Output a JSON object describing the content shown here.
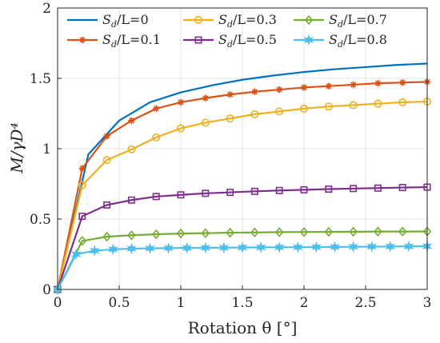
{
  "chart_data": {
    "type": "line",
    "xlabel": "Rotation θ [°]",
    "ylabel": "M/γD⁴",
    "xlim": [
      0,
      3
    ],
    "ylim": [
      0,
      2
    ],
    "xticks": [
      "0",
      "0.5",
      "1",
      "1.5",
      "2",
      "2.5",
      "3"
    ],
    "yticks": [
      "0",
      "0.5",
      "1",
      "1.5",
      "2"
    ],
    "grid": true,
    "legend": "top, 3 columns",
    "series": [
      {
        "name": "Sd/L=0",
        "sub": "d",
        "lead": "S",
        "tail": "/L=0",
        "color": "#0072BD",
        "marker": "none",
        "x": [
          0,
          0.25,
          0.5,
          0.75,
          1.0,
          1.25,
          1.5,
          1.75,
          2.0,
          2.25,
          2.5,
          2.75,
          3.0
        ],
        "y": [
          0,
          0.96,
          1.2,
          1.33,
          1.4,
          1.45,
          1.49,
          1.52,
          1.545,
          1.565,
          1.58,
          1.595,
          1.605
        ]
      },
      {
        "name": "Sd/L=0.1",
        "sub": "d",
        "lead": "S",
        "tail": "/L=0.1",
        "color": "#D95319",
        "marker": "star",
        "x": [
          0,
          0.2,
          0.4,
          0.6,
          0.8,
          1.0,
          1.2,
          1.4,
          1.6,
          1.8,
          2.0,
          2.2,
          2.4,
          2.6,
          2.8,
          3.0
        ],
        "y": [
          0,
          0.86,
          1.09,
          1.2,
          1.285,
          1.33,
          1.36,
          1.385,
          1.405,
          1.42,
          1.435,
          1.445,
          1.455,
          1.465,
          1.47,
          1.475
        ]
      },
      {
        "name": "Sd/L=0.3",
        "sub": "d",
        "lead": "S",
        "tail": "/L=0.3",
        "color": "#EDB120",
        "marker": "circle",
        "x": [
          0,
          0.2,
          0.4,
          0.6,
          0.8,
          1.0,
          1.2,
          1.4,
          1.6,
          1.8,
          2.0,
          2.2,
          2.4,
          2.6,
          2.8,
          3.0
        ],
        "y": [
          0,
          0.74,
          0.92,
          0.995,
          1.08,
          1.145,
          1.185,
          1.215,
          1.245,
          1.265,
          1.285,
          1.3,
          1.31,
          1.32,
          1.33,
          1.335
        ]
      },
      {
        "name": "Sd/L=0.5",
        "sub": "d",
        "lead": "S",
        "tail": "/L=0.5",
        "color": "#7E2F8E",
        "marker": "square",
        "x": [
          0,
          0.2,
          0.4,
          0.6,
          0.8,
          1.0,
          1.2,
          1.4,
          1.6,
          1.8,
          2.0,
          2.2,
          2.4,
          2.6,
          2.8,
          3.0
        ],
        "y": [
          0,
          0.52,
          0.6,
          0.635,
          0.66,
          0.672,
          0.683,
          0.69,
          0.697,
          0.703,
          0.708,
          0.713,
          0.717,
          0.72,
          0.724,
          0.727
        ]
      },
      {
        "name": "Sd/L=0.7",
        "sub": "d",
        "lead": "S",
        "tail": "/L=0.7",
        "color": "#77AC30",
        "marker": "diamond",
        "x": [
          0,
          0.2,
          0.4,
          0.6,
          0.8,
          1.0,
          1.2,
          1.4,
          1.6,
          1.8,
          2.0,
          2.2,
          2.4,
          2.6,
          2.8,
          3.0
        ],
        "y": [
          0,
          0.345,
          0.375,
          0.385,
          0.392,
          0.397,
          0.4,
          0.403,
          0.405,
          0.407,
          0.408,
          0.409,
          0.41,
          0.411,
          0.411,
          0.412
        ]
      },
      {
        "name": "Sd/L=0.8",
        "sub": "d",
        "lead": "S",
        "tail": "/L=0.8",
        "color": "#4DBEEE",
        "marker": "hexstar",
        "x": [
          0,
          0.15,
          0.3,
          0.45,
          0.6,
          0.75,
          0.9,
          1.05,
          1.2,
          1.35,
          1.5,
          1.65,
          1.8,
          1.95,
          2.1,
          2.25,
          2.4,
          2.55,
          2.7,
          2.85,
          3.0
        ],
        "y": [
          0,
          0.25,
          0.275,
          0.285,
          0.29,
          0.292,
          0.294,
          0.295,
          0.296,
          0.297,
          0.298,
          0.299,
          0.3,
          0.3,
          0.301,
          0.302,
          0.303,
          0.304,
          0.305,
          0.306,
          0.307
        ]
      }
    ]
  }
}
